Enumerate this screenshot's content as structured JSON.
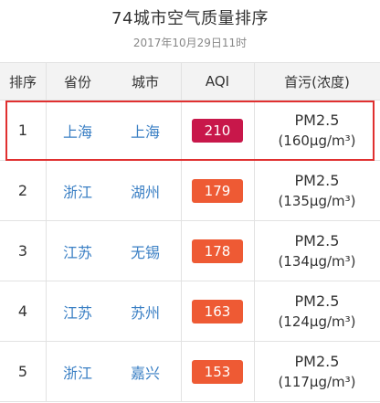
{
  "page": {
    "title": "74城市空气质量排序",
    "timestamp": "2017年10月29日11时"
  },
  "table": {
    "headers": {
      "rank": "排序",
      "province": "省份",
      "city": "城市",
      "aqi": "AQI",
      "pollutant": "首污(浓度)"
    },
    "rows": [
      {
        "rank": "1",
        "province": "上海",
        "city": "上海",
        "aqi": "210",
        "pollutant": "PM2.5",
        "concentration": "(160μg/m³)"
      },
      {
        "rank": "2",
        "province": "浙江",
        "city": "湖州",
        "aqi": "179",
        "pollutant": "PM2.5",
        "concentration": "(135μg/m³)"
      },
      {
        "rank": "3",
        "province": "江苏",
        "city": "无锡",
        "aqi": "178",
        "pollutant": "PM2.5",
        "concentration": "(134μg/m³)"
      },
      {
        "rank": "4",
        "province": "江苏",
        "city": "苏州",
        "aqi": "163",
        "pollutant": "PM2.5",
        "concentration": "(124μg/m³)"
      },
      {
        "rank": "5",
        "province": "浙江",
        "city": "嘉兴",
        "aqi": "153",
        "pollutant": "PM2.5",
        "concentration": "(117μg/m³)"
      }
    ]
  },
  "colors": {
    "aqi_very_unhealthy": "#c8174a",
    "aqi_unhealthy": "#ee5a34",
    "link": "#3a7fc4",
    "highlight_border": "#e03030"
  },
  "highlighted_row": "1"
}
